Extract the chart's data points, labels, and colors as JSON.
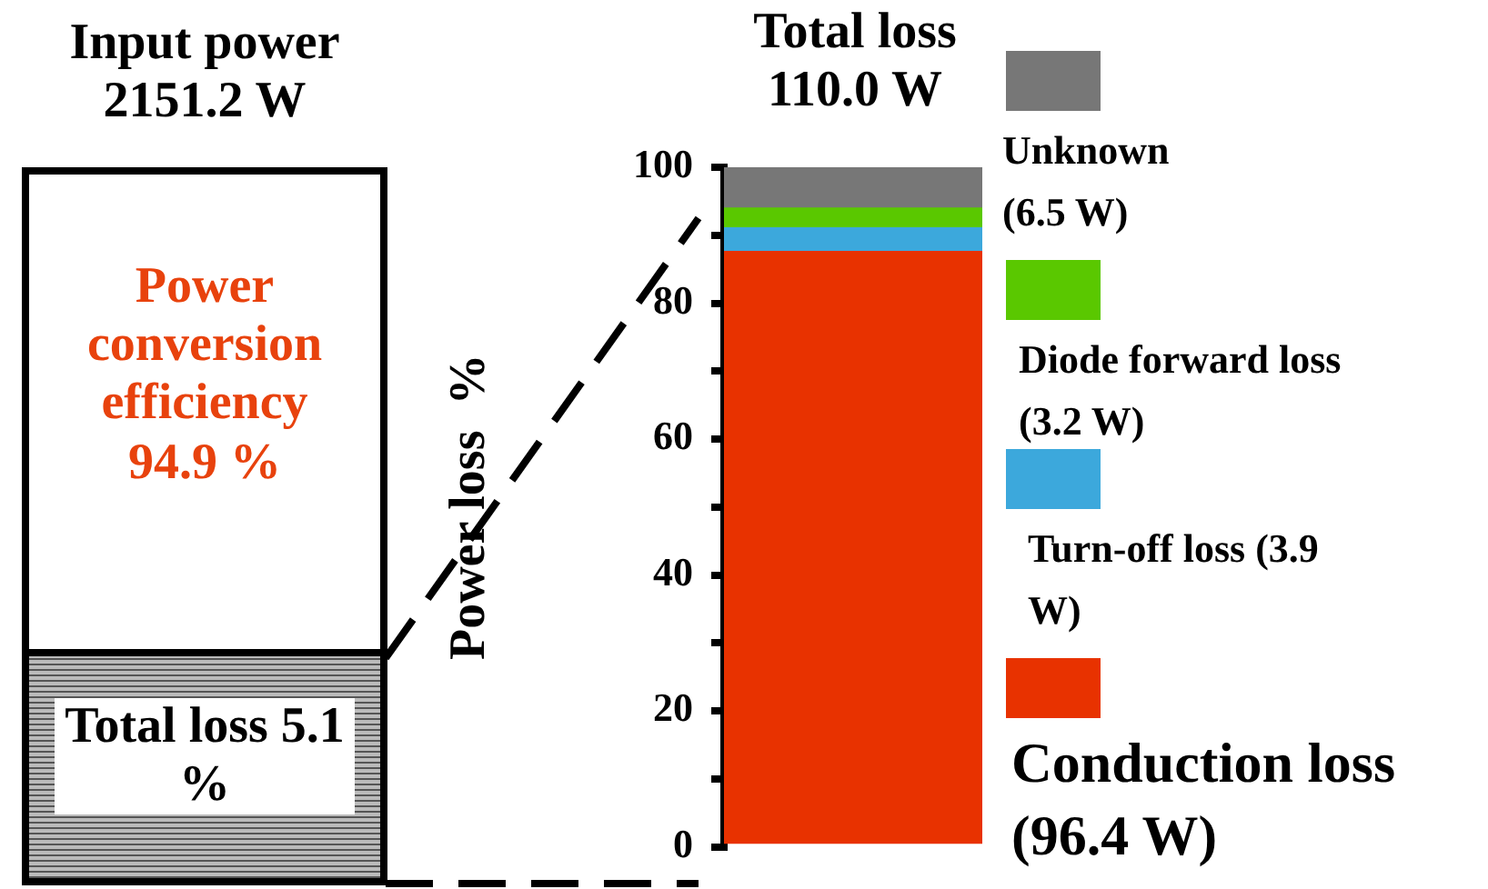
{
  "chart_data": {
    "type": "bar",
    "stacked": true,
    "title": "Total loss 110.0 W",
    "ylabel": "Power loss  %",
    "categories": [
      null
    ],
    "series": [
      {
        "name": "Conduction loss (96.4 W)",
        "color": "#e83200",
        "values": [
          87.6
        ]
      },
      {
        "name": "Turn-off loss (3.9 W)",
        "color": "#3ca8dc",
        "values": [
          3.5
        ]
      },
      {
        "name": "Diode forward loss (3.2 W)",
        "color": "#5ac800",
        "values": [
          2.9
        ]
      },
      {
        "name": "Unknown (6.5 W)",
        "color": "#777777",
        "values": [
          6.0
        ]
      }
    ],
    "ylim": [
      0,
      100
    ],
    "yticks": [
      0,
      {
        "value": 10,
        "label": null
      },
      20,
      {
        "value": 30,
        "label": null
      },
      40,
      {
        "value": 50,
        "label": null
      },
      60,
      {
        "value": 70,
        "label": null
      },
      80,
      {
        "value": 90,
        "label": null
      },
      100
    ],
    "grid": false,
    "legend": "right",
    "tick_labels": "y",
    "annotations": [
      "Input power 2151.2 W",
      "Power conversion efficiency 94.9 %",
      "Total loss 5.1 %"
    ]
  }
}
